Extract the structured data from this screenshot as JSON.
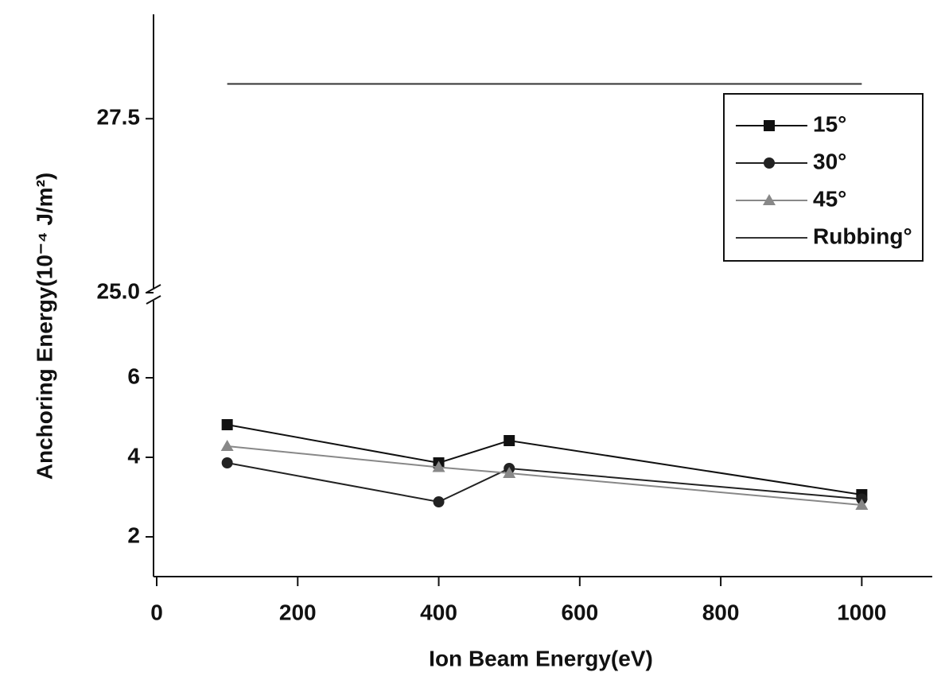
{
  "chart_data": {
    "type": "line",
    "x_label": "Ion Beam Energy(eV)",
    "y_label": "Anchoring Energy(10⁻⁴ J/m²)",
    "x": [
      100,
      400,
      500,
      1000
    ],
    "xlim": [
      0,
      1100
    ],
    "xticks": [
      0,
      200,
      400,
      600,
      800,
      1000
    ],
    "ylim": [
      1,
      8
    ],
    "yticks": [
      2,
      4,
      6
    ],
    "ylim_upper": [
      25,
      29
    ],
    "yticks_upper": [
      {
        "value": 25,
        "label": "25.0"
      },
      27.5
    ],
    "legend": "upper right",
    "series": [
      {
        "name": "15°",
        "color": "#111111",
        "marker": "square",
        "values": [
          4.82,
          3.86,
          4.42,
          3.06
        ]
      },
      {
        "name": "30°",
        "color": "#222222",
        "marker": "circle",
        "values": [
          3.86,
          2.88,
          3.72,
          2.95
        ]
      },
      {
        "name": "45°",
        "color": "#888888",
        "marker": "triangle",
        "values": [
          4.28,
          3.75,
          3.6,
          2.8
        ]
      },
      {
        "name": "Rubbing°",
        "color": "#333333",
        "marker": "none",
        "axis": "upper",
        "values": [
          28,
          28,
          28,
          28
        ]
      }
    ]
  }
}
